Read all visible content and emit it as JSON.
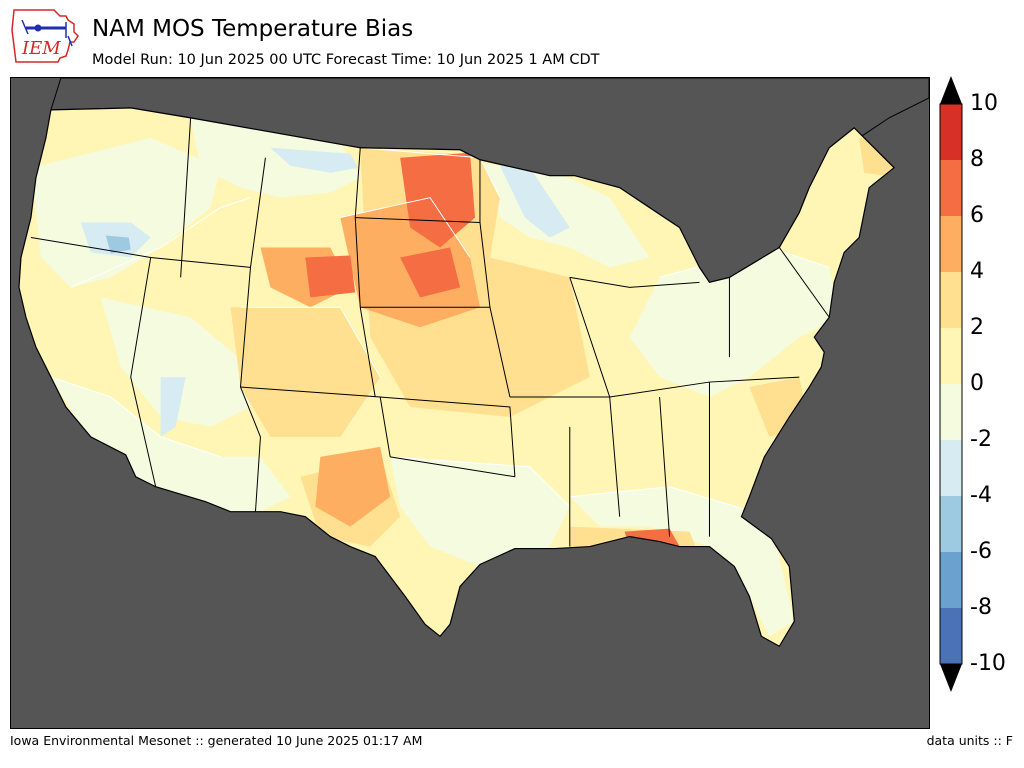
{
  "header": {
    "title": "NAM MOS Temperature Bias",
    "subtitle": "Model Run: 10 Jun 2025 00 UTC Forecast Time: 10 Jun 2025 1 AM CDT"
  },
  "logo": {
    "text": "IEM"
  },
  "footer": {
    "left": "Iowa Environmental Mesonet :: generated 10 June 2025 01:17 AM",
    "right": "data units :: F"
  },
  "colorbar": {
    "tick_labels": [
      "10",
      "8",
      "6",
      "4",
      "2",
      "0",
      "-2",
      "-4",
      "-6",
      "-8",
      "-10"
    ],
    "bins": [
      {
        "from": 8,
        "to": 10,
        "color": "#d73027"
      },
      {
        "from": 6,
        "to": 8,
        "color": "#f46d43"
      },
      {
        "from": 4,
        "to": 6,
        "color": "#fdae61"
      },
      {
        "from": 2,
        "to": 4,
        "color": "#fee090"
      },
      {
        "from": 0,
        "to": 2,
        "color": "#fff5b5"
      },
      {
        "from": -2,
        "to": 0,
        "color": "#f4fbdf"
      },
      {
        "from": -4,
        "to": -2,
        "color": "#d6ecf2"
      },
      {
        "from": -6,
        "to": -4,
        "color": "#9ecae1"
      },
      {
        "from": -8,
        "to": -6,
        "color": "#6aa1cf"
      },
      {
        "from": -10,
        "to": -8,
        "color": "#4a72b4"
      }
    ],
    "extend_over_color": "#000000",
    "extend_under_color": "#000000"
  },
  "map": {
    "ocean_color": "#555555",
    "base_color": "#fff5b5",
    "region": "CONUS"
  }
}
